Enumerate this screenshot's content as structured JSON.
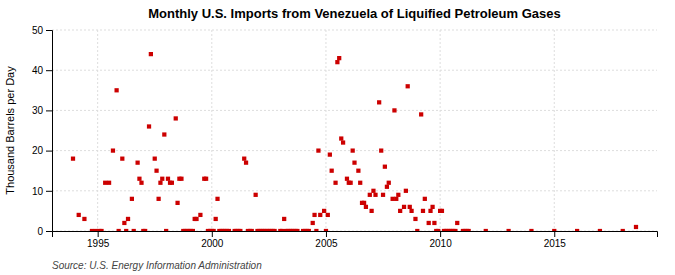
{
  "chart_data": {
    "type": "scatter",
    "title": "Monthly U.S. Imports from Venezuela of Liquified Petroleum Gases",
    "ylabel": "Thousand Barrels per Day",
    "source": "Source: U.S. Energy Information Administration",
    "color": "#cc0000",
    "marker": "square",
    "grid": true,
    "xlim": [
      1993.0,
      2019.5
    ],
    "xticks": [
      1995,
      2000,
      2005,
      2010,
      2015
    ],
    "ylim": [
      0,
      50
    ],
    "yticks": [
      0,
      10,
      20,
      30,
      40,
      50
    ],
    "x": [
      1993.92,
      1994.17,
      1994.42,
      1994.75,
      1994.92,
      1995.08,
      1995.17,
      1995.33,
      1995.5,
      1995.67,
      1995.83,
      1995.92,
      1996.08,
      1996.17,
      1996.25,
      1996.33,
      1996.5,
      1996.58,
      1996.75,
      1996.83,
      1996.92,
      1997.0,
      1997.08,
      1997.25,
      1997.33,
      1997.5,
      1997.58,
      1997.67,
      1997.75,
      1997.83,
      1997.92,
      1998.0,
      1998.08,
      1998.17,
      1998.25,
      1998.42,
      1998.5,
      1998.58,
      1998.67,
      1998.75,
      1998.83,
      1998.92,
      1999.0,
      1999.08,
      1999.17,
      1999.25,
      1999.33,
      1999.5,
      1999.67,
      1999.75,
      1999.83,
      1999.92,
      2000.0,
      2000.08,
      2000.17,
      2000.25,
      2000.33,
      2000.42,
      2000.5,
      2000.58,
      2000.67,
      2000.75,
      2001.0,
      2001.08,
      2001.17,
      2001.25,
      2001.42,
      2001.5,
      2001.58,
      2001.67,
      2001.75,
      2001.92,
      2002.0,
      2002.08,
      2002.17,
      2002.25,
      2002.33,
      2002.42,
      2002.5,
      2002.58,
      2002.67,
      2002.75,
      2003.0,
      2003.08,
      2003.17,
      2003.25,
      2003.33,
      2003.42,
      2003.5,
      2003.58,
      2003.67,
      2003.75,
      2004.0,
      2004.08,
      2004.17,
      2004.25,
      2004.42,
      2004.5,
      2004.58,
      2004.67,
      2004.75,
      2004.92,
      2005.0,
      2005.08,
      2005.17,
      2005.25,
      2005.42,
      2005.5,
      2005.58,
      2005.67,
      2005.75,
      2005.92,
      2006.0,
      2006.08,
      2006.17,
      2006.25,
      2006.42,
      2006.5,
      2006.58,
      2006.67,
      2006.75,
      2006.92,
      2007.0,
      2007.08,
      2007.17,
      2007.33,
      2007.42,
      2007.5,
      2007.58,
      2007.67,
      2007.75,
      2007.92,
      2008.0,
      2008.08,
      2008.17,
      2008.25,
      2008.42,
      2008.5,
      2008.58,
      2008.67,
      2008.75,
      2008.92,
      2009.0,
      2009.17,
      2009.25,
      2009.33,
      2009.5,
      2009.58,
      2009.67,
      2009.75,
      2009.83,
      2009.92,
      2010.0,
      2010.08,
      2010.17,
      2010.25,
      2010.33,
      2010.42,
      2010.5,
      2010.58,
      2010.67,
      2010.75,
      2011.0,
      2011.08,
      2011.17,
      2011.25,
      2012.0,
      2013.0,
      2014.0,
      2015.0,
      2016.0,
      2017.0,
      2018.0,
      2018.58
    ],
    "values": [
      18,
      4,
      3,
      0,
      0,
      0,
      0,
      12,
      12,
      20,
      35,
      0,
      18,
      2,
      0,
      3,
      8,
      0,
      17,
      13,
      12,
      0,
      0,
      26,
      44,
      18,
      15,
      8,
      12,
      13,
      24,
      0,
      13,
      12,
      12,
      28,
      7,
      13,
      13,
      0,
      0,
      0,
      0,
      0,
      0,
      3,
      3,
      4,
      13,
      13,
      0,
      0,
      0,
      0,
      3,
      8,
      0,
      0,
      0,
      0,
      0,
      0,
      0,
      0,
      0,
      0,
      18,
      17,
      0,
      0,
      0,
      9,
      0,
      0,
      0,
      0,
      0,
      0,
      0,
      0,
      0,
      0,
      0,
      0,
      3,
      0,
      0,
      0,
      0,
      0,
      0,
      0,
      0,
      0,
      0,
      0,
      2,
      4,
      0,
      20,
      4,
      5,
      0,
      4,
      19,
      15,
      12,
      42,
      43,
      23,
      22,
      13,
      12,
      12,
      20,
      17,
      15,
      12,
      7,
      7,
      6,
      9,
      5,
      10,
      9,
      32,
      20,
      9,
      16,
      11,
      12,
      8,
      30,
      8,
      9,
      5,
      6,
      10,
      36,
      6,
      5,
      3,
      0,
      29,
      5,
      8,
      2,
      5,
      6,
      2,
      0,
      0,
      5,
      5,
      0,
      0,
      0,
      0,
      0,
      0,
      0,
      2,
      0,
      0,
      0,
      0,
      0,
      0,
      0,
      0,
      0,
      0,
      0,
      1
    ]
  }
}
